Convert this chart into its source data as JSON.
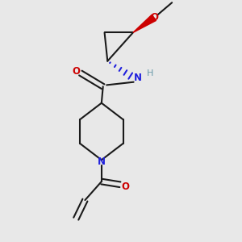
{
  "bg_color": "#e8e8e8",
  "line_color": "#1a1a1a",
  "N_color": "#2020dd",
  "O_color": "#cc0000",
  "H_color": "#6a9aaa",
  "bond_lw": 1.5,
  "figsize": [
    3.0,
    3.0
  ],
  "dpi": 100,
  "xlim": [
    -1.0,
    5.5
  ],
  "ylim": [
    -2.5,
    5.5
  ]
}
